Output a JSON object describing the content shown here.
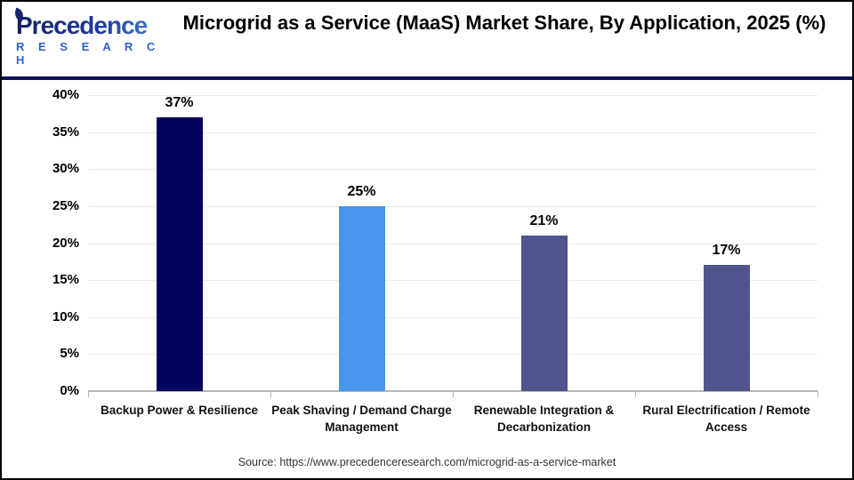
{
  "logo": {
    "word": "Precedence",
    "subword": "R E S E A R C H"
  },
  "header": {
    "title": "Microgrid as a Service (MaaS) Market Share, By Application, 2025 (%)"
  },
  "footer": {
    "source": "Source: https://www.precedenceresearch.com/microgrid-as-a-service-market"
  },
  "colors": {
    "bar_navy": "#02045e",
    "bar_blue": "#4895ec",
    "bar_slate": "#4d548e",
    "header_divider": "#0f1254",
    "gridline": "#ebebeb",
    "axis_line": "#b5b5b5",
    "logo_blue": "#2d62c9"
  },
  "chart_data": {
    "type": "bar",
    "title": "Microgrid as a Service (MaaS) Market Share, By Application, 2025 (%)",
    "xlabel": "",
    "ylabel": "",
    "categories": [
      "Backup Power & Resilience",
      "Peak Shaving / Demand Charge Management",
      "Renewable Integration & Decarbonization",
      "Rural Electrification / Remote Access"
    ],
    "values": [
      37,
      25,
      21,
      17
    ],
    "value_labels": [
      "37%",
      "25%",
      "21%",
      "17%"
    ],
    "bar_colors": [
      "#02045e",
      "#4895ec",
      "#4d548e",
      "#4d548e"
    ],
    "ylim": [
      0,
      40
    ],
    "yticks": [
      0,
      5,
      10,
      15,
      20,
      25,
      30,
      35,
      40
    ],
    "ytick_labels": [
      "0%",
      "5%",
      "10%",
      "15%",
      "20%",
      "25%",
      "30%",
      "35%",
      "40%"
    ],
    "grid": true,
    "legend": false
  }
}
